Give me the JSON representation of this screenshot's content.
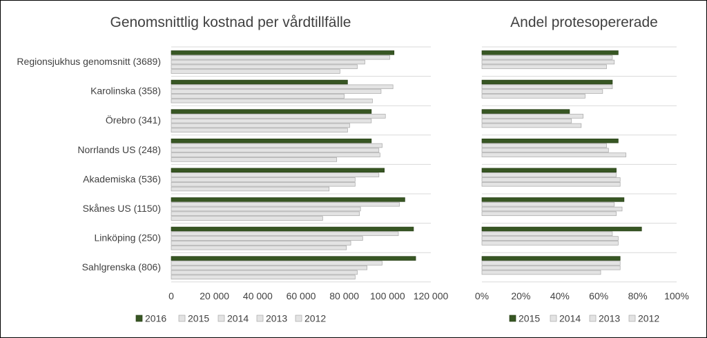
{
  "chart_data": [
    {
      "type": "bar",
      "orientation": "horizontal",
      "title": "Genomsnittlig kostnad per vårdtillfälle",
      "categories": [
        "Regionsjukhus genomsnitt (3689)",
        "Karolinska (358)",
        "Örebro (341)",
        "Norrlands US (248)",
        "Akademiska (536)",
        "Skånes US (1150)",
        "Linköping (250)",
        "Sahlgrenska (806)"
      ],
      "series": [
        {
          "name": "2016",
          "values": [
            103000,
            81500,
            92500,
            92500,
            98500,
            108000,
            112000,
            113000
          ]
        },
        {
          "name": "2015",
          "values": [
            101000,
            102500,
            99000,
            97500,
            96000,
            105500,
            105000,
            97500
          ]
        },
        {
          "name": "2014",
          "values": [
            89500,
            97000,
            92500,
            96000,
            85000,
            87500,
            88500,
            90500
          ]
        },
        {
          "name": "2013",
          "values": [
            86000,
            80000,
            82500,
            96500,
            85000,
            87000,
            83000,
            86000
          ]
        },
        {
          "name": "2012",
          "values": [
            78000,
            93000,
            81500,
            76500,
            73000,
            70000,
            81000,
            85000
          ]
        }
      ],
      "xlim": [
        0,
        120000
      ],
      "xticks": [
        "0",
        "20 000",
        "40 000",
        "60 000",
        "80 000",
        "100 000",
        "120 000"
      ],
      "legend": [
        "2016",
        "2015",
        "2014",
        "2013",
        "2012"
      ],
      "legend_position": "bottom",
      "grid": true
    },
    {
      "type": "bar",
      "orientation": "horizontal",
      "title": "Andel protesopererade",
      "categories": [
        "Regionsjukhus genomsnitt (3689)",
        "Karolinska (358)",
        "Örebro (341)",
        "Norrlands US (248)",
        "Akademiska (536)",
        "Skånes US (1150)",
        "Linköping (250)",
        "Sahlgrenska (806)"
      ],
      "series": [
        {
          "name": "2015",
          "values": [
            0.7,
            0.67,
            0.45,
            0.7,
            0.69,
            0.73,
            0.82,
            0.71
          ]
        },
        {
          "name": "2014",
          "values": [
            0.67,
            0.67,
            0.52,
            0.64,
            0.69,
            0.68,
            0.67,
            0.71
          ]
        },
        {
          "name": "2013",
          "values": [
            0.68,
            0.62,
            0.46,
            0.65,
            0.71,
            0.72,
            0.7,
            0.71
          ]
        },
        {
          "name": "2012",
          "values": [
            0.64,
            0.53,
            0.51,
            0.74,
            0.71,
            0.69,
            0.7,
            0.61
          ]
        }
      ],
      "xlim": [
        0,
        1
      ],
      "xticks": [
        "0%",
        "20%",
        "40%",
        "60%",
        "80%",
        "100%"
      ],
      "legend": [
        "2015",
        "2014",
        "2013",
        "2012"
      ],
      "legend_position": "bottom",
      "grid": true
    }
  ],
  "colors": {
    "current_year": "#375623",
    "previous_years": "#e3e3e3",
    "bar_border": "#a6a6a6",
    "text": "#404040",
    "grid": "#d9d9d9"
  }
}
